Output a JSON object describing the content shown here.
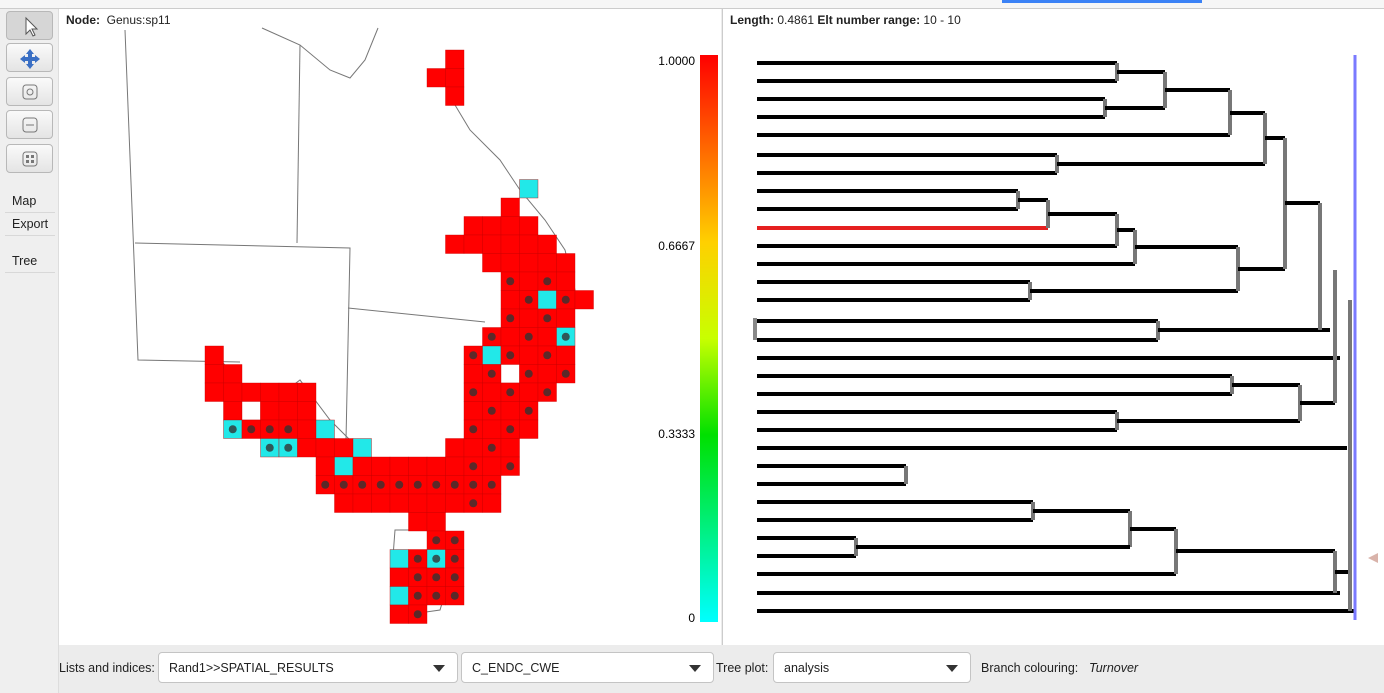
{
  "header": {
    "node_label": "Node:",
    "node_value": "Genus:sp11",
    "length_label": "Length:",
    "length_value": "0.4861",
    "range_label": "Elt number range:",
    "range_value": "10 - 10"
  },
  "toolbar": {
    "items": [
      "Map",
      "Export",
      "Tree"
    ]
  },
  "colorbar": {
    "labels": [
      "1.0000",
      "0.6667",
      "0.3333",
      "0"
    ]
  },
  "footer": {
    "lists_label": "Lists and indices:",
    "list_value": "Rand1>>SPATIAL_RESULTS",
    "index_value": "C_ENDC_CWE",
    "tree_plot_label": "Tree plot:",
    "tree_plot_value": "analysis",
    "branch_label": "Branch colouring:",
    "branch_value": "Turnover"
  }
}
